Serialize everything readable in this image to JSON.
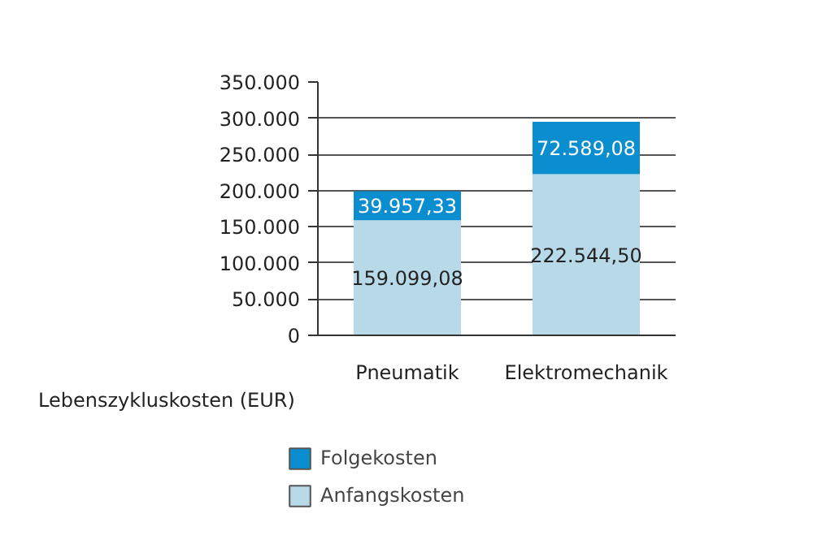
{
  "chart_data": {
    "type": "bar",
    "stacked": true,
    "xlabel": "Lebenszykluskosten (EUR)",
    "categories": [
      "Pneumatik",
      "Elektromechanik"
    ],
    "series": [
      {
        "name": "Anfangskosten",
        "color": "#b8d9e8",
        "values": [
          159099.08,
          222544.5
        ],
        "value_labels": [
          "159.099,08",
          "222.544,50"
        ]
      },
      {
        "name": "Folgekosten",
        "color": "#0b8ed0",
        "values": [
          39957.33,
          72589.08
        ],
        "value_labels": [
          "39.957,33",
          "72.589,08"
        ]
      }
    ],
    "ylim": [
      0,
      350000
    ],
    "yticks": [
      0,
      {
        "value": 50000,
        "label": "50.000"
      },
      {
        "value": 100000,
        "label": "100.000"
      },
      {
        "value": 150000,
        "label": "150.000"
      },
      {
        "value": 200000,
        "label": "200.000"
      },
      {
        "value": 250000,
        "label": "250.000"
      },
      {
        "value": 300000,
        "label": "300.000"
      },
      {
        "value": 350000,
        "label": "350.000"
      }
    ],
    "grid": "y",
    "legend": "bottom"
  }
}
